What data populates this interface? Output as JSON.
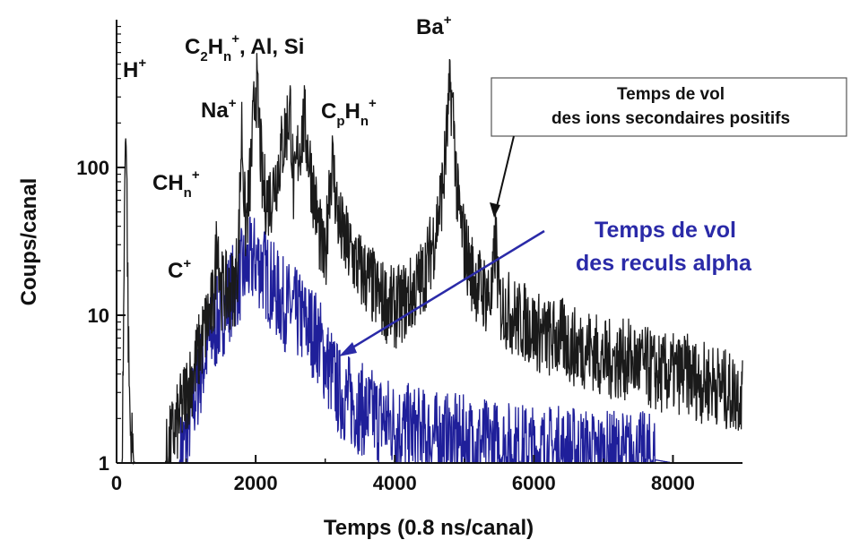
{
  "chart_data": {
    "type": "line",
    "xlabel": "Temps (0.8 ns/canal)",
    "ylabel": "Coups/canal",
    "xlim": [
      0,
      9000
    ],
    "ylim": [
      1,
      1000
    ],
    "yscale": "log",
    "grid": false,
    "x_ticks": [
      0,
      2000,
      4000,
      6000,
      8000
    ],
    "y_ticks": [
      1,
      10,
      100
    ],
    "y_tick_labels": [
      "1",
      "10",
      "100"
    ],
    "colors": {
      "positive_ions": "#1a1a1a",
      "alpha_recoils": "#1f1f9a",
      "annotation_blue": "#2a2aa8"
    },
    "series": [
      {
        "key": "positive_ions",
        "x": [
          0,
          80,
          100,
          130,
          150,
          170,
          200,
          260,
          300,
          360,
          420,
          500,
          600,
          700,
          800,
          900,
          1000,
          1100,
          1200,
          1300,
          1400,
          1450,
          1500,
          1600,
          1700,
          1750,
          1800,
          1850,
          1900,
          1950,
          2000,
          2050,
          2100,
          2200,
          2300,
          2400,
          2500,
          2550,
          2600,
          2700,
          2800,
          2900,
          3000,
          3050,
          3100,
          3200,
          3300,
          3400,
          3500,
          3600,
          3700,
          3800,
          3900,
          4000,
          4100,
          4200,
          4300,
          4400,
          4500,
          4600,
          4700,
          4800,
          4850,
          4900,
          5000,
          5100,
          5200,
          5300,
          5400,
          5450,
          5500,
          5600,
          5700,
          5800,
          5900,
          6000,
          6200,
          6400,
          6600,
          6800,
          7000,
          7200,
          7400,
          7600,
          7800,
          8000,
          8200,
          8400,
          8600,
          8800,
          9000
        ],
        "y": [
          1,
          1,
          8,
          300,
          60,
          6,
          1.5,
          1,
          1,
          1,
          1,
          1,
          1,
          1,
          1.5,
          2,
          3,
          4,
          6,
          9,
          12,
          40,
          15,
          14,
          16,
          25,
          190,
          40,
          60,
          140,
          400,
          200,
          70,
          60,
          90,
          150,
          250,
          60,
          120,
          200,
          90,
          40,
          20,
          70,
          110,
          40,
          30,
          25,
          20,
          18,
          15,
          13,
          12,
          11,
          12,
          13,
          15,
          18,
          25,
          40,
          80,
          350,
          200,
          60,
          30,
          20,
          16,
          14,
          13,
          35,
          12,
          11,
          10,
          9,
          9,
          8,
          7,
          7,
          6,
          6,
          5,
          5,
          5,
          4.5,
          4,
          4,
          4,
          3.5,
          3.5,
          3,
          3
        ]
      },
      {
        "key": "alpha_recoils",
        "x": [
          0,
          900,
          1000,
          1100,
          1200,
          1300,
          1400,
          1500,
          1600,
          1700,
          1800,
          1900,
          2000,
          2100,
          2200,
          2300,
          2400,
          2500,
          2600,
          2700,
          2800,
          2900,
          3000,
          3100,
          3200,
          3400,
          3600,
          3800,
          4000,
          4500,
          5000,
          5500,
          6000,
          6500,
          7000,
          7500,
          8000,
          8500,
          9000
        ],
        "y": [
          1,
          1,
          1.5,
          2.5,
          4,
          6,
          8,
          10,
          13,
          16,
          19,
          22,
          24,
          21,
          17,
          14,
          12,
          11,
          10,
          9,
          8,
          7,
          5,
          4,
          3,
          2.5,
          2.2,
          2,
          1.8,
          1.5,
          1.4,
          1.3,
          1.2,
          1.2,
          1.1,
          1.1,
          1,
          1,
          1
        ]
      }
    ],
    "annotations": {
      "h": "H",
      "h_sup": "+",
      "c2hn_a": "C",
      "c2hn_sub2": "2",
      "c2hn_b": "H",
      "c2hn_subn": "n",
      "c2hn_sup": "+",
      "c2hn_rest": ", Al, Si",
      "ba": "Ba",
      "ba_sup": "+",
      "na": "Na",
      "na_sup": "+",
      "cphn_a": "C",
      "cphn_subp": "p",
      "cphn_b": "H",
      "cphn_subn": "n",
      "cphn_sup": "+",
      "chn_a": "CH",
      "chn_subn": "n",
      "chn_sup": "+",
      "c": "C",
      "c_sup": "+",
      "tof_positive_line1": "Temps de vol",
      "tof_positive_line2": "des ions secondaires positifs",
      "tof_alpha_line1": "Temps de vol",
      "tof_alpha_line2": "des reculs alpha"
    }
  }
}
